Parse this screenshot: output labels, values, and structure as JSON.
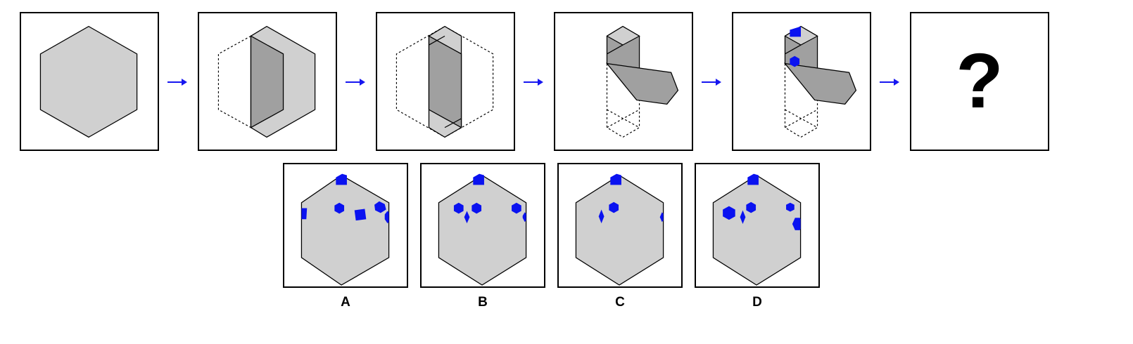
{
  "colors": {
    "paper": "#d0d0d0",
    "paper_dark": "#a0a0a0",
    "paper_mid": "#b8b8b8",
    "hole": "#0a12f0",
    "arrow": "#1616f0",
    "line": "#000000"
  },
  "sequence": {
    "step_count": 6,
    "question_mark": "?"
  },
  "options": [
    {
      "label": "A"
    },
    {
      "label": "B"
    },
    {
      "label": "C"
    },
    {
      "label": "D"
    }
  ]
}
